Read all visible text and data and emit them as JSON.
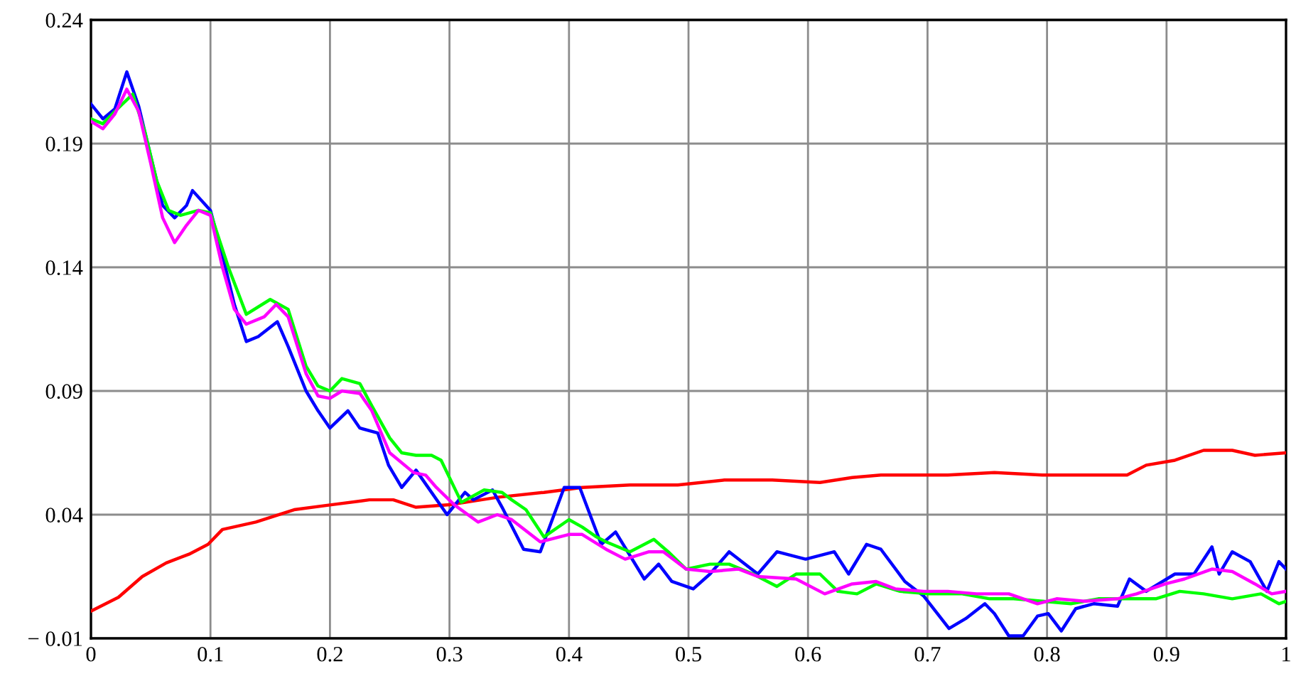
{
  "chart_data": {
    "type": "line",
    "xlim": [
      0,
      1
    ],
    "ylim": [
      -0.01,
      0.24
    ],
    "xticks": [
      0,
      0.1,
      0.2,
      0.3,
      0.4,
      0.5,
      0.6,
      0.7,
      0.8,
      0.9,
      1
    ],
    "yticks": [
      {
        "value": -0.01,
        "label": "− 0.01"
      },
      0.04,
      0.09,
      0.14,
      0.19,
      0.24
    ],
    "grid": true,
    "line_style": "solid",
    "marker": "none",
    "series": [
      {
        "color": "#ff0000",
        "x": [
          0,
          0.023,
          0.043,
          0.063,
          0.082,
          0.098,
          0.11,
          0.138,
          0.17,
          0.201,
          0.233,
          0.253,
          0.272,
          0.3,
          0.34,
          0.379,
          0.411,
          0.451,
          0.491,
          0.53,
          0.57,
          0.61,
          0.637,
          0.661,
          0.677,
          0.717,
          0.756,
          0.796,
          0.836,
          0.867,
          0.883,
          0.907,
          0.931,
          0.955,
          0.974,
          1
        ],
        "values": [
          0.001,
          0.0066,
          0.015,
          0.0205,
          0.024,
          0.028,
          0.034,
          0.037,
          0.042,
          0.044,
          0.046,
          0.046,
          0.043,
          0.044,
          0.047,
          0.049,
          0.051,
          0.052,
          0.052,
          0.054,
          0.054,
          0.053,
          0.055,
          0.056,
          0.056,
          0.056,
          0.057,
          0.056,
          0.056,
          0.056,
          0.06,
          0.062,
          0.066,
          0.066,
          0.064,
          0.065
        ]
      },
      {
        "color": "#0000ff",
        "x": [
          0,
          0.01,
          0.02,
          0.03,
          0.04,
          0.05,
          0.06,
          0.07,
          0.08,
          0.085,
          0.1,
          0.11,
          0.12,
          0.13,
          0.14,
          0.156,
          0.165,
          0.18,
          0.19,
          0.2,
          0.215,
          0.225,
          0.24,
          0.249,
          0.26,
          0.272,
          0.298,
          0.313,
          0.32,
          0.336,
          0.344,
          0.362,
          0.376,
          0.396,
          0.409,
          0.427,
          0.439,
          0.463,
          0.475,
          0.486,
          0.504,
          0.518,
          0.534,
          0.558,
          0.574,
          0.598,
          0.622,
          0.634,
          0.649,
          0.661,
          0.681,
          0.697,
          0.718,
          0.732,
          0.748,
          0.756,
          0.768,
          0.78,
          0.792,
          0.801,
          0.812,
          0.824,
          0.839,
          0.859,
          0.869,
          0.883,
          0.907,
          0.923,
          0.938,
          0.944,
          0.955,
          0.97,
          0.984,
          0.994,
          1
        ],
        "values": [
          0.206,
          0.2,
          0.204,
          0.219,
          0.205,
          0.185,
          0.165,
          0.16,
          0.165,
          0.171,
          0.163,
          0.145,
          0.125,
          0.11,
          0.112,
          0.118,
          0.108,
          0.09,
          0.082,
          0.075,
          0.082,
          0.075,
          0.073,
          0.06,
          0.051,
          0.058,
          0.04,
          0.049,
          0.046,
          0.05,
          0.043,
          0.026,
          0.025,
          0.051,
          0.051,
          0.028,
          0.033,
          0.014,
          0.02,
          0.013,
          0.01,
          0.016,
          0.025,
          0.016,
          0.025,
          0.022,
          0.025,
          0.016,
          0.028,
          0.026,
          0.013,
          0.007,
          -0.006,
          -0.002,
          0.004,
          0.0,
          -0.009,
          -0.009,
          -0.001,
          0.0,
          -0.007,
          0.002,
          0.004,
          0.003,
          0.014,
          0.009,
          0.016,
          0.016,
          0.027,
          0.016,
          0.025,
          0.021,
          0.009,
          0.021,
          0.018
        ]
      },
      {
        "color": "#00ff00",
        "x": [
          0,
          0.01,
          0.02,
          0.035,
          0.045,
          0.055,
          0.065,
          0.075,
          0.09,
          0.1,
          0.115,
          0.13,
          0.15,
          0.165,
          0.18,
          0.19,
          0.2,
          0.21,
          0.225,
          0.235,
          0.25,
          0.26,
          0.272,
          0.285,
          0.293,
          0.31,
          0.329,
          0.344,
          0.352,
          0.364,
          0.379,
          0.4,
          0.411,
          0.423,
          0.431,
          0.451,
          0.471,
          0.483,
          0.498,
          0.518,
          0.534,
          0.554,
          0.574,
          0.59,
          0.61,
          0.625,
          0.641,
          0.657,
          0.677,
          0.701,
          0.729,
          0.752,
          0.772,
          0.796,
          0.82,
          0.843,
          0.867,
          0.891,
          0.911,
          0.931,
          0.955,
          0.979,
          0.994,
          1
        ],
        "values": [
          0.2,
          0.198,
          0.203,
          0.21,
          0.195,
          0.175,
          0.163,
          0.161,
          0.163,
          0.162,
          0.14,
          0.121,
          0.127,
          0.123,
          0.1,
          0.092,
          0.09,
          0.095,
          0.093,
          0.084,
          0.071,
          0.065,
          0.064,
          0.064,
          0.062,
          0.045,
          0.05,
          0.049,
          0.046,
          0.042,
          0.031,
          0.038,
          0.035,
          0.031,
          0.029,
          0.025,
          0.03,
          0.025,
          0.018,
          0.02,
          0.02,
          0.016,
          0.011,
          0.016,
          0.016,
          0.009,
          0.008,
          0.012,
          0.009,
          0.008,
          0.008,
          0.006,
          0.006,
          0.005,
          0.004,
          0.006,
          0.006,
          0.006,
          0.009,
          0.008,
          0.006,
          0.008,
          0.004,
          0.005
        ]
      },
      {
        "color": "#ff00ff",
        "x": [
          0,
          0.01,
          0.02,
          0.03,
          0.04,
          0.05,
          0.06,
          0.07,
          0.08,
          0.09,
          0.1,
          0.11,
          0.12,
          0.13,
          0.145,
          0.155,
          0.165,
          0.18,
          0.19,
          0.2,
          0.21,
          0.225,
          0.235,
          0.25,
          0.27,
          0.28,
          0.289,
          0.304,
          0.324,
          0.34,
          0.352,
          0.376,
          0.4,
          0.411,
          0.431,
          0.447,
          0.467,
          0.479,
          0.498,
          0.518,
          0.542,
          0.558,
          0.59,
          0.614,
          0.637,
          0.657,
          0.673,
          0.697,
          0.717,
          0.741,
          0.768,
          0.792,
          0.808,
          0.832,
          0.859,
          0.875,
          0.899,
          0.915,
          0.938,
          0.955,
          0.974,
          0.988,
          1
        ],
        "values": [
          0.199,
          0.196,
          0.202,
          0.212,
          0.203,
          0.182,
          0.16,
          0.15,
          0.157,
          0.163,
          0.161,
          0.14,
          0.123,
          0.117,
          0.12,
          0.125,
          0.12,
          0.097,
          0.088,
          0.087,
          0.09,
          0.089,
          0.082,
          0.065,
          0.057,
          0.056,
          0.051,
          0.044,
          0.037,
          0.04,
          0.038,
          0.029,
          0.032,
          0.032,
          0.026,
          0.022,
          0.025,
          0.025,
          0.018,
          0.017,
          0.018,
          0.015,
          0.014,
          0.008,
          0.012,
          0.013,
          0.01,
          0.009,
          0.009,
          0.008,
          0.008,
          0.004,
          0.006,
          0.005,
          0.006,
          0.008,
          0.012,
          0.014,
          0.018,
          0.017,
          0.012,
          0.008,
          0.009
        ]
      }
    ]
  }
}
